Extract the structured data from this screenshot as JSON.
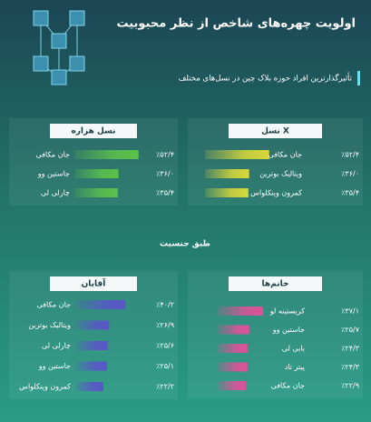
{
  "title": "اولویت چهره‌های شاخص از نظر محبوبیت",
  "subtitle": "تأثیرگذارترین افراد حوزه بلاک چین در نسل‌های مختلف",
  "section_title": "طبق جنسیت",
  "chart_data": [
    {
      "type": "bar",
      "title": "نسل X",
      "color": "#d8d83a",
      "categories": [
        "جان مکافی",
        "ویتالیک بوترین",
        "کمرون وینکلواس"
      ],
      "values": [
        52.4,
        36.0,
        35.4
      ],
      "value_labels": [
        "٪۵۲/۴",
        "٪۳۶/۰",
        "٪۳۵/۴"
      ]
    },
    {
      "type": "bar",
      "title": "نسل هزاره",
      "color": "#5cc24a",
      "categories": [
        "جان مکافی",
        "جاستین وو",
        "چارلی لی"
      ],
      "values": [
        52.4,
        36.0,
        35.4
      ],
      "value_labels": [
        "٪۵۲/۴",
        "٪۳۶/۰",
        "٪۳۵/۴"
      ]
    },
    {
      "type": "bar",
      "title": "خانم‌ها",
      "color": "#e0509a",
      "categories": [
        "کریستینه لو",
        "جاستین وو",
        "بابی لی",
        "پیتر تاد",
        "جان مکافی"
      ],
      "values": [
        37.1,
        25.7,
        24.3,
        24.3,
        22.9
      ],
      "value_labels": [
        "٪۳۷/۱",
        "٪۲۵/۷",
        "٪۲۴/۳",
        "٪۲۴/۳",
        "٪۲۲/۹"
      ]
    },
    {
      "type": "bar",
      "title": "آقایان",
      "color": "#5a55c8",
      "categories": [
        "جان مکافی",
        "ویتالیک بوترین",
        "چارلی لی",
        "جاستین وو",
        "کمرون وینکلواس"
      ],
      "values": [
        40.2,
        26.9,
        25.6,
        25.1,
        22.2
      ],
      "value_labels": [
        "٪۴۰/۲",
        "٪۲۶/۹",
        "٪۲۵/۶",
        "٪۲۵/۱",
        "٪۲۲/۲"
      ]
    }
  ]
}
